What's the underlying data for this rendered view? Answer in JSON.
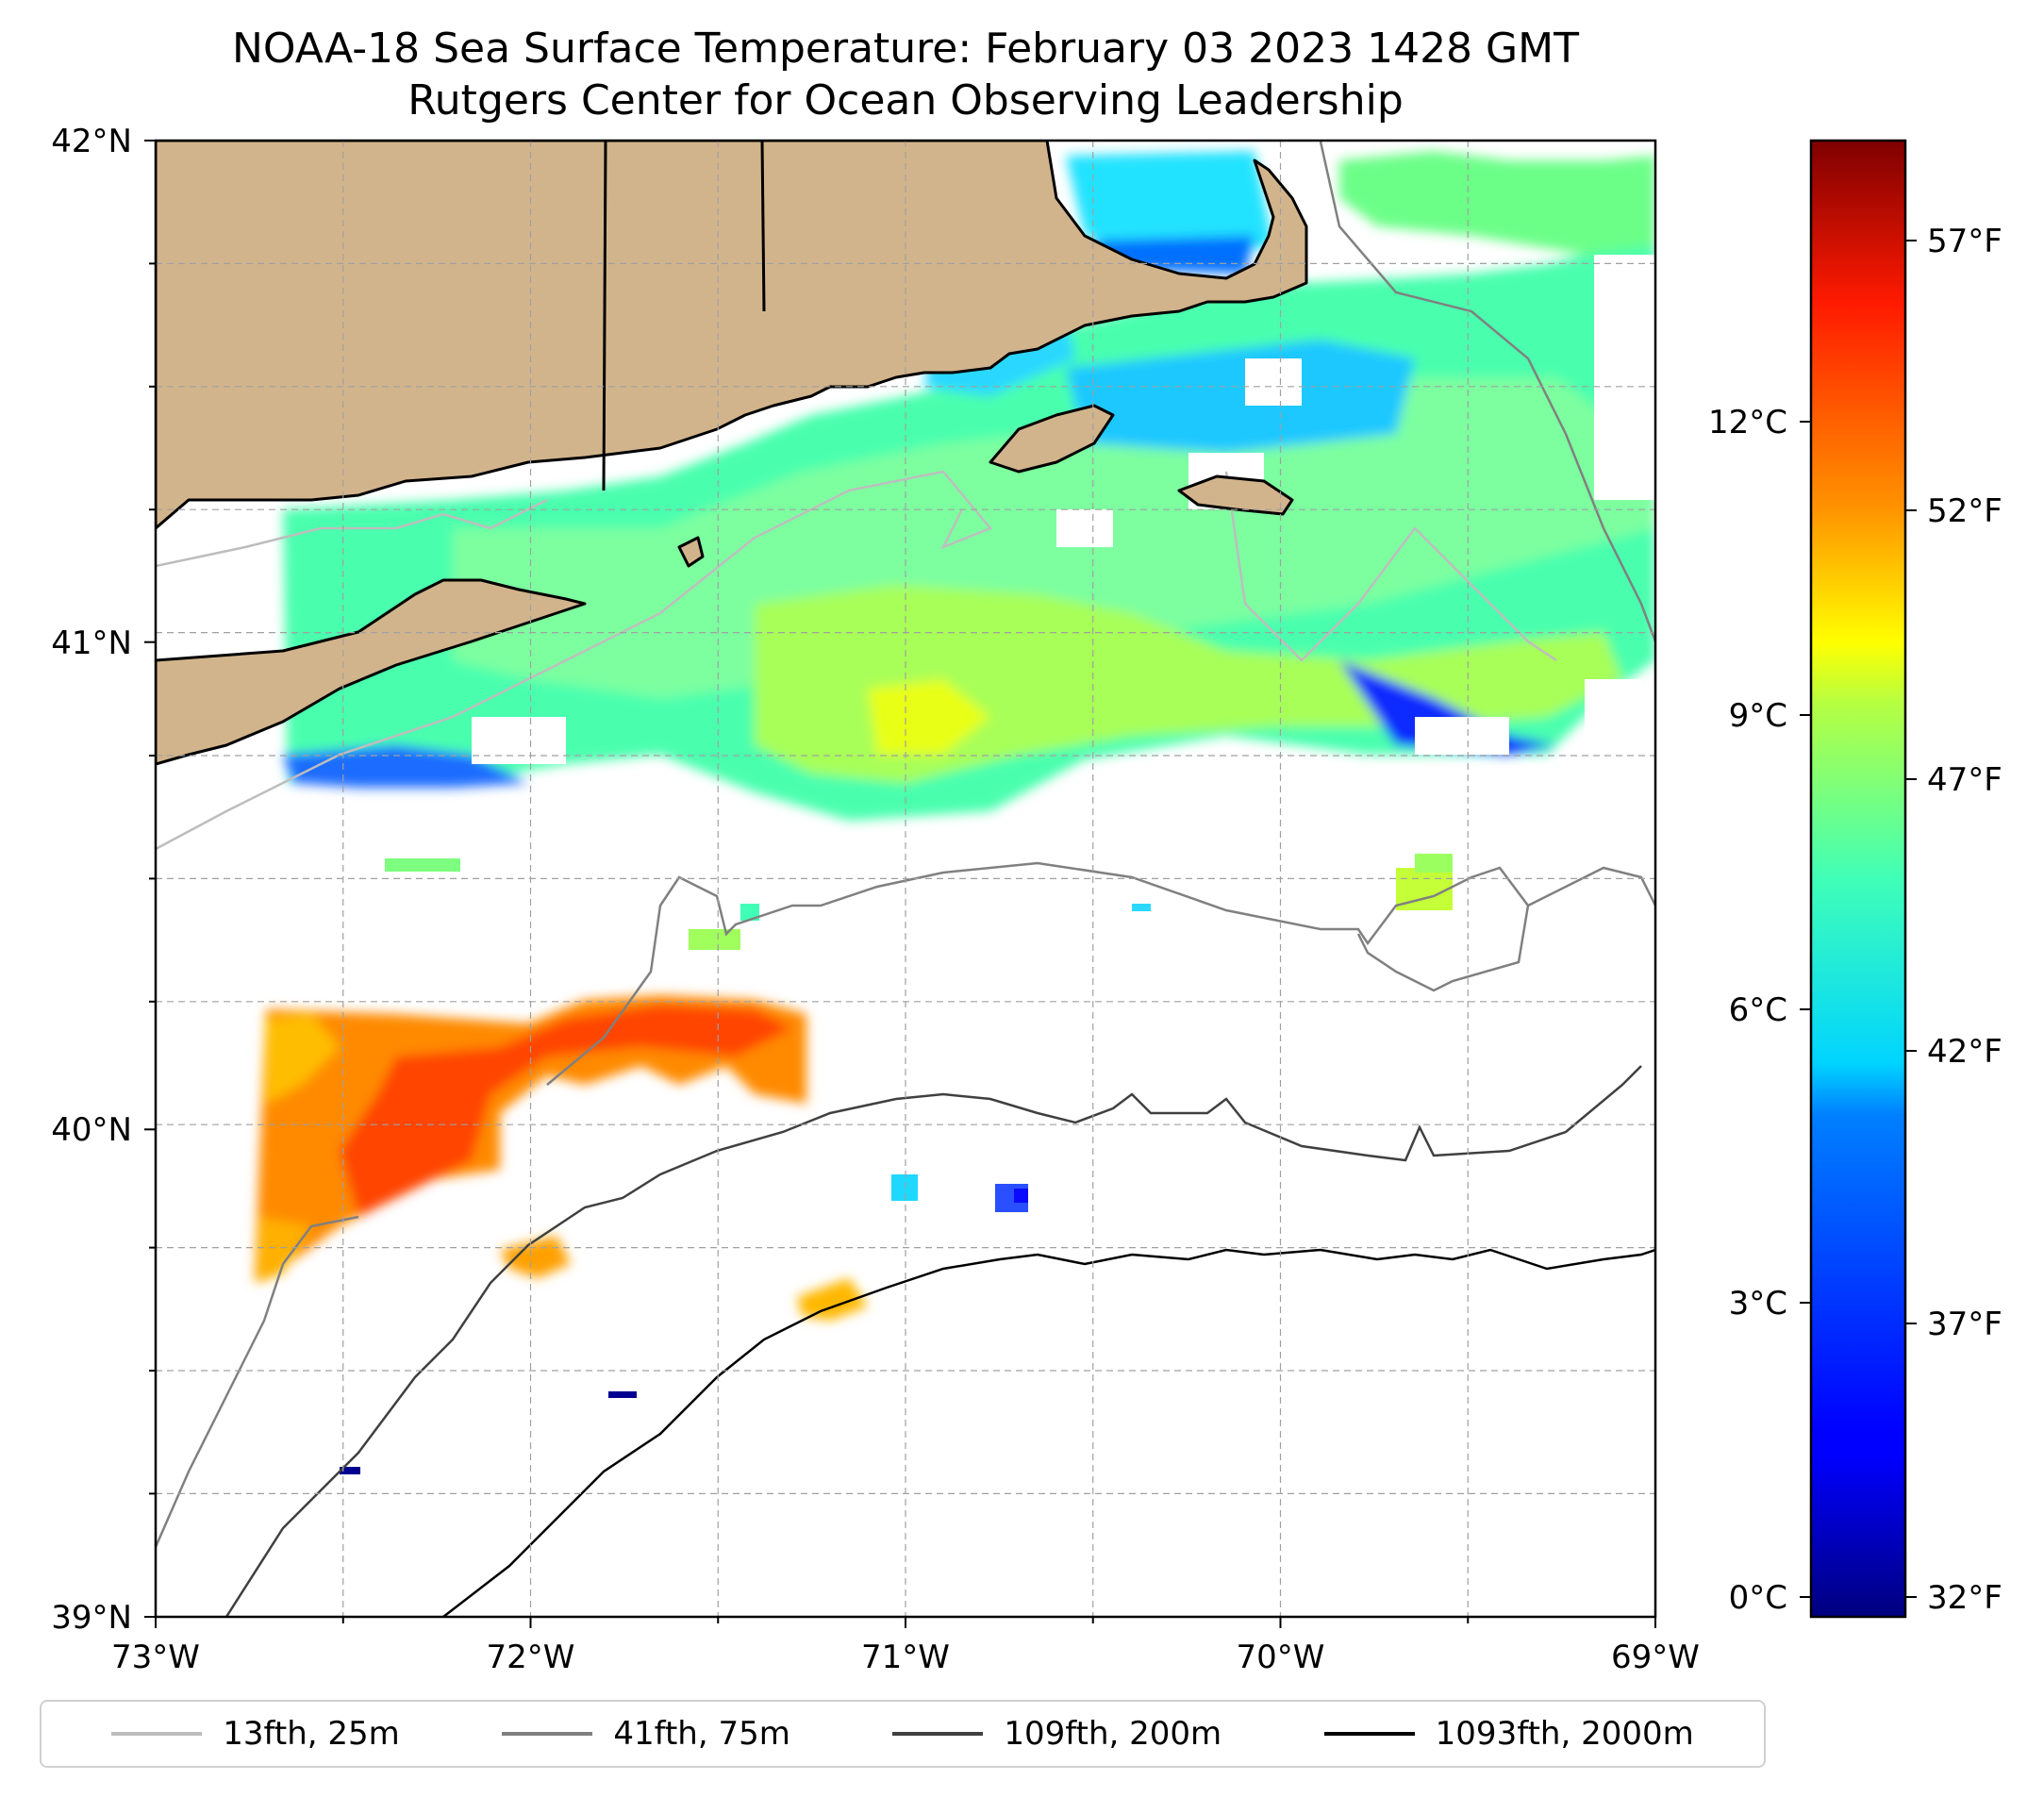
{
  "title": {
    "line1": "NOAA-18 Sea Surface Temperature: February 03 2023 1428 GMT",
    "line2": "Rutgers Center for Ocean Observing Leadership"
  },
  "map": {
    "lon_range": [
      -73,
      -69
    ],
    "lat_range": [
      39,
      42
    ],
    "lat_ticks": [
      "42°N",
      "41°N",
      "40°N",
      "39°N"
    ],
    "lon_ticks": [
      "73°W",
      "72°W",
      "71°W",
      "70°W",
      "69°W"
    ],
    "land_color": "#d2b48c",
    "grid": true
  },
  "colorbar": {
    "colormap": "jet",
    "celsius_ticks": [
      "12°C",
      "9°C",
      "6°C",
      "3°C",
      "0°C"
    ],
    "fahrenheit_ticks": [
      "57°F",
      "52°F",
      "47°F",
      "42°F",
      "37°F",
      "32°F"
    ]
  },
  "legend": {
    "items": [
      {
        "label": "13fth, 25m",
        "color": "#bdbdbd"
      },
      {
        "label": "41fth, 75m",
        "color": "#808080"
      },
      {
        "label": "109fth, 200m",
        "color": "#404040"
      },
      {
        "label": "1093fth, 2000m",
        "color": "#000000"
      }
    ]
  }
}
